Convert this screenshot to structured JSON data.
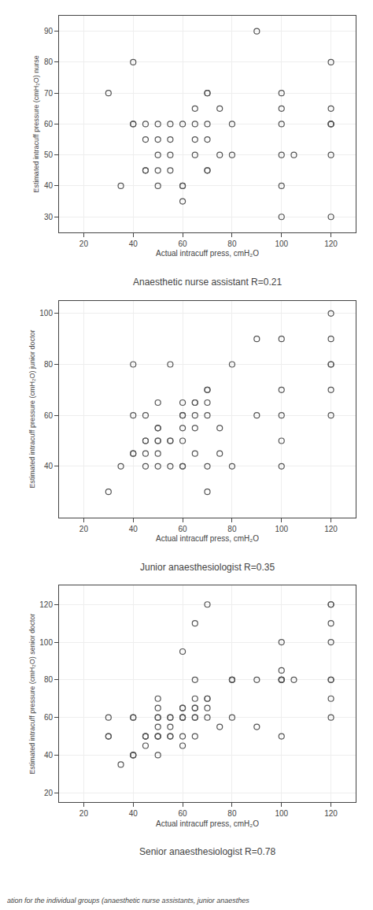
{
  "chart_data": [
    {
      "type": "scatter",
      "title": "Anaesthetic nurse assistant R=0.21",
      "x_label": "Actual intracuff press, cmH₂O",
      "y_label": "Estimated intracuff pressure (cmH₂O) nurse",
      "xlim": [
        10,
        130
      ],
      "ylim": [
        25,
        95
      ],
      "xticks": [
        20,
        40,
        60,
        80,
        100,
        120
      ],
      "yticks": [
        30,
        40,
        50,
        60,
        70,
        80,
        90
      ],
      "marker": "circle-open",
      "color": "#555555",
      "grid": true,
      "x": [
        30,
        35,
        40,
        40,
        40,
        45,
        45,
        45,
        45,
        50,
        50,
        50,
        50,
        50,
        55,
        55,
        55,
        55,
        60,
        60,
        60,
        60,
        65,
        65,
        65,
        65,
        70,
        70,
        70,
        70,
        70,
        70,
        75,
        75,
        80,
        80,
        90,
        100,
        100,
        100,
        100,
        100,
        100,
        105,
        120,
        120,
        120,
        120,
        120,
        120,
        120
      ],
      "values": [
        70,
        40,
        60,
        60,
        80,
        45,
        45,
        55,
        60,
        40,
        45,
        50,
        60,
        55,
        50,
        55,
        60,
        45,
        40,
        40,
        60,
        35,
        60,
        65,
        55,
        50,
        45,
        45,
        60,
        70,
        70,
        55,
        65,
        50,
        60,
        50,
        90,
        65,
        70,
        60,
        50,
        40,
        30,
        50,
        50,
        65,
        60,
        60,
        80,
        30,
        60
      ]
    },
    {
      "type": "scatter",
      "title": "Junior anaesthesiologist R=0.35",
      "x_label": "Actual intracuff press, cmH₂O",
      "y_label": "Estimated intracuff pressure (cmH₂O) junior doctor",
      "xlim": [
        10,
        130
      ],
      "ylim": [
        20,
        105
      ],
      "xticks": [
        20,
        40,
        60,
        80,
        100,
        120
      ],
      "yticks": [
        40,
        60,
        80,
        100
      ],
      "marker": "circle-open",
      "color": "#555555",
      "grid": true,
      "x": [
        30,
        35,
        40,
        40,
        40,
        40,
        45,
        45,
        45,
        45,
        45,
        50,
        50,
        50,
        50,
        50,
        50,
        50,
        55,
        55,
        55,
        55,
        60,
        60,
        60,
        60,
        60,
        60,
        60,
        65,
        65,
        65,
        65,
        65,
        70,
        70,
        70,
        70,
        70,
        70,
        75,
        75,
        80,
        80,
        90,
        90,
        100,
        100,
        100,
        100,
        100,
        120,
        120,
        120,
        120,
        120,
        120
      ],
      "values": [
        30,
        40,
        45,
        45,
        60,
        80,
        40,
        45,
        50,
        50,
        60,
        40,
        45,
        50,
        50,
        55,
        55,
        65,
        40,
        50,
        50,
        80,
        40,
        40,
        50,
        55,
        60,
        60,
        65,
        45,
        55,
        60,
        65,
        65,
        30,
        40,
        60,
        65,
        70,
        70,
        45,
        55,
        80,
        40,
        90,
        60,
        90,
        50,
        60,
        40,
        70,
        80,
        80,
        90,
        60,
        70,
        100
      ]
    },
    {
      "type": "scatter",
      "title": "Senior anaesthesiologist R=0.78",
      "x_label": "Actual intracuff press, cmH₂O",
      "y_label": "Estimated intracuff pressure (cmH₂O) senior doctor",
      "xlim": [
        10,
        130
      ],
      "ylim": [
        15,
        130
      ],
      "xticks": [
        20,
        40,
        60,
        80,
        100,
        120
      ],
      "yticks": [
        20,
        40,
        60,
        80,
        100,
        120
      ],
      "marker": "circle-open",
      "color": "#555555",
      "grid": true,
      "x": [
        30,
        30,
        30,
        35,
        40,
        40,
        40,
        40,
        40,
        45,
        45,
        45,
        45,
        50,
        50,
        50,
        50,
        50,
        50,
        50,
        50,
        50,
        55,
        55,
        55,
        55,
        55,
        60,
        60,
        60,
        60,
        60,
        60,
        60,
        60,
        65,
        65,
        65,
        65,
        65,
        65,
        65,
        65,
        70,
        70,
        70,
        70,
        70,
        75,
        80,
        80,
        80,
        80,
        90,
        90,
        100,
        100,
        100,
        100,
        100,
        100,
        100,
        105,
        120,
        120,
        120,
        120,
        120,
        120,
        120,
        120
      ],
      "values": [
        50,
        50,
        60,
        35,
        40,
        40,
        40,
        60,
        60,
        45,
        50,
        50,
        50,
        50,
        50,
        50,
        55,
        60,
        60,
        65,
        70,
        40,
        50,
        50,
        55,
        60,
        60,
        45,
        50,
        60,
        60,
        60,
        65,
        65,
        95,
        60,
        60,
        65,
        65,
        70,
        80,
        110,
        50,
        60,
        65,
        70,
        70,
        120,
        55,
        60,
        80,
        80,
        80,
        55,
        80,
        80,
        80,
        80,
        80,
        85,
        100,
        50,
        80,
        80,
        110,
        120,
        120,
        80,
        100,
        70,
        60
      ]
    }
  ],
  "caption": "ation for the individual groups (anaesthetic nurse assistants, junior anaesthes"
}
